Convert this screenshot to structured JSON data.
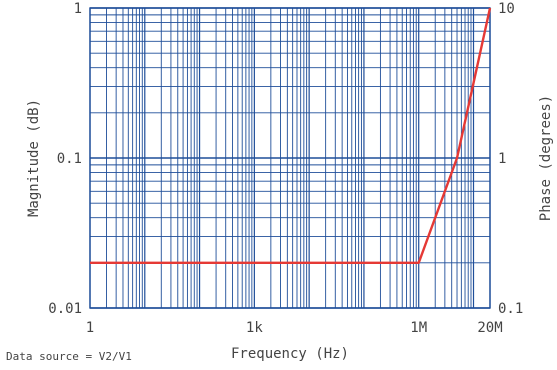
{
  "chart_data": {
    "type": "line",
    "x_scale": "log",
    "y_scale": "log",
    "x_range": [
      1,
      20000000
    ],
    "y_range": [
      0.01,
      1
    ],
    "y2_range": [
      0.1,
      10
    ],
    "grid": true,
    "colors": {
      "grid": "#1f4e99",
      "line": "#e53935",
      "text": "#444444",
      "background": "#ffffff"
    },
    "xlabel": "Frequency (Hz)",
    "ylabel": "Magnitude (dB)",
    "y2label": "Phase (degrees)",
    "footnote": "Data source = V2/V1",
    "x_ticks": [
      {
        "value": 1,
        "label": "1"
      },
      {
        "value": 1000,
        "label": "1k"
      },
      {
        "value": 1000000,
        "label": "1M"
      },
      {
        "value": 20000000,
        "label": "20M"
      }
    ],
    "y_ticks": [
      {
        "value": 1,
        "label": "1"
      },
      {
        "value": 0.1,
        "label": "0.1"
      },
      {
        "value": 0.01,
        "label": "0.01"
      }
    ],
    "y2_ticks": [
      {
        "value": 10,
        "label": "10"
      },
      {
        "value": 1,
        "label": "1"
      },
      {
        "value": 0.1,
        "label": "0.1"
      }
    ],
    "series": [
      {
        "x": [
          1,
          1000000,
          5000000,
          20000000
        ],
        "y": [
          0.02,
          0.02,
          0.1,
          1
        ]
      }
    ]
  }
}
